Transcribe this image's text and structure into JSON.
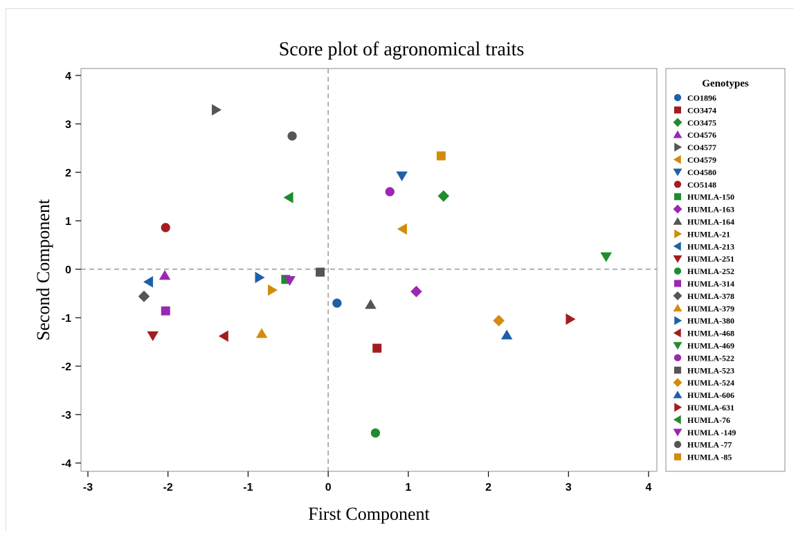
{
  "chart_data": {
    "type": "scatter",
    "title": "Score plot of agronomical traits",
    "xlabel": "First Component",
    "ylabel": "Second Component",
    "xlim": [
      -3,
      4
    ],
    "ylim": [
      -4,
      4
    ],
    "xticks": [
      -3,
      -2,
      -1,
      0,
      1,
      2,
      3,
      4
    ],
    "yticks": [
      -4,
      -3,
      -2,
      -1,
      0,
      1,
      2,
      3,
      4
    ],
    "reference_lines": {
      "x": 0,
      "y": 0
    },
    "grid": false,
    "legend": {
      "title": "Genotypes",
      "position": "right"
    },
    "series": [
      {
        "name": "CO1896",
        "marker": "circle",
        "color": "#1f5fa8",
        "x": 0.11,
        "y": -0.7
      },
      {
        "name": "CO3474",
        "marker": "square",
        "color": "#a31d20",
        "x": 0.61,
        "y": -1.63
      },
      {
        "name": "CO3475",
        "marker": "diamond",
        "color": "#1e8c2e",
        "x": 1.44,
        "y": 1.51
      },
      {
        "name": "CO4576",
        "marker": "triangle-up",
        "color": "#9b27b3",
        "x": -2.04,
        "y": -0.13
      },
      {
        "name": "CO4577",
        "marker": "triangle-right",
        "color": "#555555",
        "x": -1.4,
        "y": 3.29
      },
      {
        "name": "CO4579",
        "marker": "triangle-left",
        "color": "#d38b0b",
        "x": 0.93,
        "y": 0.83
      },
      {
        "name": "CO4580",
        "marker": "triangle-down",
        "color": "#1f5fa8",
        "x": 0.92,
        "y": 1.93
      },
      {
        "name": "CO5148",
        "marker": "circle",
        "color": "#a31d20",
        "x": -2.03,
        "y": 0.86
      },
      {
        "name": "HUMLA-150",
        "marker": "square",
        "color": "#1e8c2e",
        "x": -0.53,
        "y": -0.21
      },
      {
        "name": "HUMLA-163",
        "marker": "diamond",
        "color": "#9b27b3",
        "x": 1.1,
        "y": -0.46
      },
      {
        "name": "HUMLA-164",
        "marker": "triangle-up",
        "color": "#555555",
        "x": 0.53,
        "y": -0.73
      },
      {
        "name": "HUMLA-21",
        "marker": "triangle-right",
        "color": "#d38b0b",
        "x": -0.7,
        "y": -0.43
      },
      {
        "name": "HUMLA-213",
        "marker": "triangle-left",
        "color": "#1f5fa8",
        "x": -2.24,
        "y": -0.26
      },
      {
        "name": "HUMLA-251",
        "marker": "triangle-down",
        "color": "#a31d20",
        "x": -2.19,
        "y": -1.37
      },
      {
        "name": "HUMLA-252",
        "marker": "circle",
        "color": "#1e8c2e",
        "x": 0.59,
        "y": -3.38
      },
      {
        "name": "HUMLA-314",
        "marker": "square",
        "color": "#9b27b3",
        "x": -2.03,
        "y": -0.86
      },
      {
        "name": "HUMLA-378",
        "marker": "diamond",
        "color": "#555555",
        "x": -2.3,
        "y": -0.56
      },
      {
        "name": "HUMLA-379",
        "marker": "triangle-up",
        "color": "#d38b0b",
        "x": -0.83,
        "y": -1.33
      },
      {
        "name": "HUMLA-380",
        "marker": "triangle-right",
        "color": "#1f5fa8",
        "x": -0.86,
        "y": -0.17
      },
      {
        "name": "HUMLA-468",
        "marker": "triangle-left",
        "color": "#a31d20",
        "x": -1.3,
        "y": -1.38
      },
      {
        "name": "HUMLA-469",
        "marker": "triangle-down",
        "color": "#1e8c2e",
        "x": 3.47,
        "y": 0.26
      },
      {
        "name": "HUMLA-522",
        "marker": "circle",
        "color": "#9b27b3",
        "x": 0.77,
        "y": 1.6
      },
      {
        "name": "HUMLA-523",
        "marker": "square",
        "color": "#555555",
        "x": -0.1,
        "y": -0.06
      },
      {
        "name": "HUMLA-524",
        "marker": "diamond",
        "color": "#d38b0b",
        "x": 2.13,
        "y": -1.06
      },
      {
        "name": "HUMLA-606",
        "marker": "triangle-up",
        "color": "#1f5fa8",
        "x": 2.23,
        "y": -1.36
      },
      {
        "name": "HUMLA-631",
        "marker": "triangle-right",
        "color": "#a31d20",
        "x": 3.02,
        "y": -1.03
      },
      {
        "name": "HUMLA-76",
        "marker": "triangle-left",
        "color": "#1e8c2e",
        "x": -0.49,
        "y": 1.48
      },
      {
        "name": "HUMLA -149",
        "marker": "triangle-down",
        "color": "#9b27b3",
        "x": -0.48,
        "y": -0.23
      },
      {
        "name": "HUMLA -77",
        "marker": "circle",
        "color": "#555555",
        "x": -0.45,
        "y": 2.75
      },
      {
        "name": "HUMLA -85",
        "marker": "square",
        "color": "#d38b0b",
        "x": 1.41,
        "y": 2.34
      }
    ]
  }
}
